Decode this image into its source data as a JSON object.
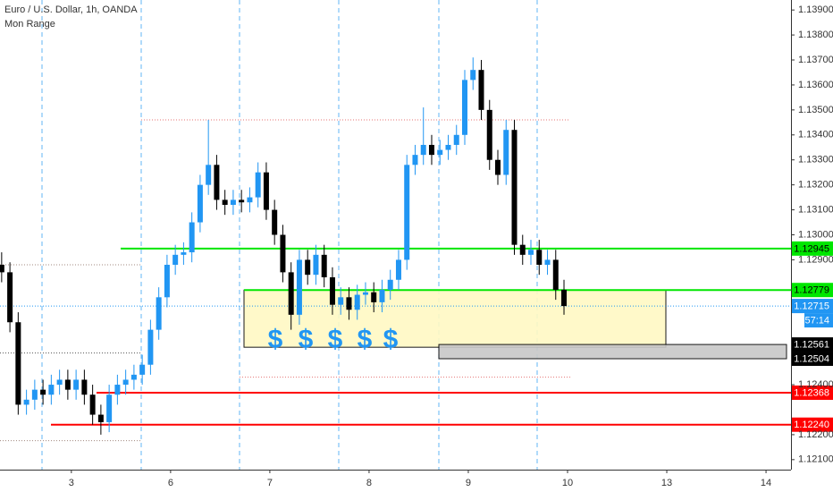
{
  "chart_data": {
    "type": "candlestick",
    "title": "Euro / U.S. Dollar, 1h, OANDA",
    "subtitle": "Mon Range",
    "x": [
      0,
      1,
      2,
      3,
      4,
      5,
      6,
      7,
      8,
      9,
      10,
      11,
      12,
      13,
      14,
      15,
      16,
      17,
      18,
      19,
      20,
      21,
      22,
      23,
      24,
      25,
      26,
      27,
      28,
      29,
      30,
      31,
      32,
      33,
      34,
      35,
      36,
      37,
      38,
      39,
      40,
      41,
      42,
      43,
      44,
      45,
      46,
      47,
      48,
      49,
      50,
      51,
      52,
      53,
      54,
      55,
      56,
      57,
      58,
      59,
      60,
      61,
      62,
      63,
      64,
      65,
      66,
      67,
      68
    ],
    "open": [
      1.1288,
      1.1285,
      1.1265,
      1.1232,
      1.1234,
      1.1238,
      1.1236,
      1.124,
      1.1242,
      1.1238,
      1.1242,
      1.1236,
      1.1228,
      1.1225,
      1.1236,
      1.124,
      1.1242,
      1.1244,
      1.1248,
      1.1262,
      1.1275,
      1.1288,
      1.1292,
      1.1293,
      1.1305,
      1.132,
      1.1328,
      1.1314,
      1.1312,
      1.1314,
      1.1313,
      1.1315,
      1.1325,
      1.131,
      1.13,
      1.1285,
      1.1268,
      1.129,
      1.1284,
      1.1292,
      1.1283,
      1.1272,
      1.1275,
      1.127,
      1.1276,
      1.1277,
      1.1273,
      1.1278,
      1.1282,
      1.129,
      1.1328,
      1.1332,
      1.1336,
      1.1332,
      1.1334,
      1.1336,
      1.134,
      1.1362,
      1.1366,
      1.135,
      1.133,
      1.1324,
      1.1342,
      1.1296,
      1.1292,
      1.1294,
      1.1288,
      1.129,
      1.1278
    ],
    "high": [
      1.1293,
      1.1289,
      1.1269,
      1.1238,
      1.1242,
      1.1242,
      1.1244,
      1.1246,
      1.1246,
      1.1246,
      1.1246,
      1.124,
      1.1232,
      1.124,
      1.1244,
      1.1246,
      1.1248,
      1.1252,
      1.1266,
      1.1279,
      1.1292,
      1.1296,
      1.1297,
      1.1309,
      1.1324,
      1.1346,
      1.1332,
      1.1318,
      1.1318,
      1.1318,
      1.1319,
      1.1329,
      1.1329,
      1.1314,
      1.1304,
      1.1289,
      1.1294,
      1.1294,
      1.1296,
      1.1296,
      1.1287,
      1.1279,
      1.1279,
      1.128,
      1.1281,
      1.1281,
      1.1282,
      1.1286,
      1.1294,
      1.1332,
      1.1336,
      1.1351,
      1.134,
      1.1338,
      1.134,
      1.1344,
      1.1366,
      1.1371,
      1.137,
      1.1354,
      1.1334,
      1.1346,
      1.1346,
      1.13,
      1.1298,
      1.1298,
      1.1294,
      1.1294,
      1.1282
    ],
    "low": [
      1.1281,
      1.1261,
      1.1228,
      1.1228,
      1.123,
      1.1232,
      1.1232,
      1.1236,
      1.1234,
      1.1234,
      1.1232,
      1.1224,
      1.122,
      1.1221,
      1.1232,
      1.1236,
      1.1238,
      1.124,
      1.1244,
      1.1258,
      1.1271,
      1.1284,
      1.1288,
      1.1289,
      1.1301,
      1.1316,
      1.131,
      1.1308,
      1.1308,
      1.1309,
      1.1309,
      1.1311,
      1.1306,
      1.1296,
      1.1281,
      1.1262,
      1.1264,
      1.128,
      1.128,
      1.1279,
      1.1268,
      1.1268,
      1.1266,
      1.1266,
      1.1272,
      1.1269,
      1.1269,
      1.1274,
      1.1278,
      1.1286,
      1.1324,
      1.1328,
      1.1328,
      1.1328,
      1.133,
      1.1332,
      1.1336,
      1.1358,
      1.1346,
      1.1326,
      1.132,
      1.132,
      1.1292,
      1.1288,
      1.1288,
      1.1284,
      1.1284,
      1.1274,
      1.1268
    ],
    "close": [
      1.1285,
      1.1265,
      1.1232,
      1.1234,
      1.1238,
      1.1236,
      1.124,
      1.1242,
      1.1238,
      1.1242,
      1.1236,
      1.1228,
      1.1225,
      1.1236,
      1.124,
      1.1242,
      1.1244,
      1.1248,
      1.1262,
      1.1275,
      1.1288,
      1.1292,
      1.1293,
      1.1305,
      1.132,
      1.1328,
      1.1314,
      1.1312,
      1.1314,
      1.1313,
      1.1315,
      1.1325,
      1.131,
      1.13,
      1.1285,
      1.1268,
      1.129,
      1.1284,
      1.1292,
      1.1283,
      1.1272,
      1.1275,
      1.127,
      1.1276,
      1.1277,
      1.1273,
      1.1278,
      1.1282,
      1.129,
      1.1328,
      1.1332,
      1.1336,
      1.1332,
      1.1334,
      1.1336,
      1.134,
      1.1362,
      1.1366,
      1.135,
      1.133,
      1.1324,
      1.1342,
      1.1296,
      1.1292,
      1.1294,
      1.1288,
      1.129,
      1.1278,
      1.12715
    ],
    "up_color": "#2196f3",
    "down_color": "#000000",
    "xlim": [
      -0.2,
      95.45
    ],
    "xticks": [
      {
        "value": 8.43,
        "label": "3"
      },
      {
        "value": 20.43,
        "label": "6"
      },
      {
        "value": 32.43,
        "label": "7"
      },
      {
        "value": 44.43,
        "label": "8"
      },
      {
        "value": 56.43,
        "label": "9"
      },
      {
        "value": 68.43,
        "label": "10"
      },
      {
        "value": 80.43,
        "label": "13"
      },
      {
        "value": 92.43,
        "label": "14"
      }
    ],
    "ylim": [
      1.1206,
      1.1394
    ],
    "yticks": [
      {
        "value": 1.139,
        "label": "1.13900"
      },
      {
        "value": 1.138,
        "label": "1.13800"
      },
      {
        "value": 1.137,
        "label": "1.13700"
      },
      {
        "value": 1.136,
        "label": "1.13600"
      },
      {
        "value": 1.135,
        "label": "1.13500"
      },
      {
        "value": 1.134,
        "label": "1.13400"
      },
      {
        "value": 1.133,
        "label": "1.13300"
      },
      {
        "value": 1.132,
        "label": "1.13200"
      },
      {
        "value": 1.131,
        "label": "1.13100"
      },
      {
        "value": 1.13,
        "label": "1.13000"
      },
      {
        "value": 1.129,
        "label": "1.12900"
      },
      {
        "value": 1.124,
        "label": "1.12400"
      },
      {
        "value": 1.122,
        "label": "1.12200"
      },
      {
        "value": 1.121,
        "label": "1.12100"
      }
    ],
    "levels": [
      {
        "value": 1.12945,
        "label": "1.12945",
        "color": "#00e600"
      },
      {
        "value": 1.12779,
        "label": "1.12779",
        "color": "#00e600"
      },
      {
        "value": 1.12715,
        "label": "1.12715",
        "color": "#2196f3"
      },
      {
        "value": 1.12561,
        "label": "1.12561",
        "color": "#000000"
      },
      {
        "value": 1.12504,
        "label": "1.12504",
        "color": "#000000"
      },
      {
        "value": 1.12368,
        "label": "1.12368",
        "color": "#ff0000"
      },
      {
        "value": 1.1224,
        "label": "1.12240",
        "color": "#ff0000"
      }
    ],
    "countdown": "57:14",
    "zones": [
      {
        "top": 1.12779,
        "bottom": 1.1255,
        "color": "#fff9c4"
      },
      {
        "top": 1.12561,
        "bottom": 1.12504,
        "color": "#c8c8c8"
      }
    ],
    "dotted_levels": [
      1.1346,
      1.1243,
      1.1288,
      1.12527,
      1.12176
    ],
    "annotations": [
      "$",
      "$",
      "$",
      "$",
      "$"
    ]
  }
}
